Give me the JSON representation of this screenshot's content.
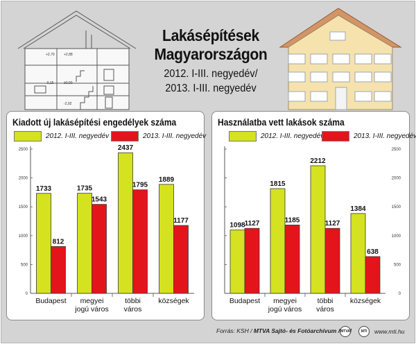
{
  "title": {
    "line1": "Lakásépítések",
    "line2": "Magyarországon",
    "line3": "2012. I-III. negyedév/",
    "line4": "2013.  I-III. negyedév"
  },
  "colors": {
    "series_2012": "#d4e21f",
    "series_2013": "#e3151b",
    "bar_stroke": "#3a3a3a",
    "house_wall": "#f6e2ad",
    "house_roof": "#d49566"
  },
  "house_annotations": [
    "+2,79",
    "+2,88",
    "-0,15",
    "±0,00",
    "-2,92"
  ],
  "chart_data": [
    {
      "type": "bar",
      "title": "Kiadott új lakásépítési engedélyek száma",
      "categories": [
        "Budapest",
        "megyei jogú város",
        "többi város",
        "községek"
      ],
      "category_lines": [
        [
          "Budapest"
        ],
        [
          "megyei",
          "jogú város"
        ],
        [
          "többi",
          "város"
        ],
        [
          "községek"
        ]
      ],
      "series": [
        {
          "name": "2012. I-III. negyedév",
          "values": [
            1733,
            1735,
            2437,
            1889
          ]
        },
        {
          "name": "2013. I-III. negyedév",
          "values": [
            812,
            1543,
            1795,
            1177
          ]
        }
      ],
      "ylim": [
        0,
        2500
      ],
      "yticks": [
        0,
        500,
        1000,
        1500,
        2000,
        2500
      ],
      "legend": "top",
      "grid": false
    },
    {
      "type": "bar",
      "title": "Használatba vett lakások száma",
      "categories": [
        "Budapest",
        "megyei jogú város",
        "többi város",
        "községek"
      ],
      "category_lines": [
        [
          "Budapest"
        ],
        [
          "megyei",
          "jogú város"
        ],
        [
          "többi",
          "város"
        ],
        [
          "községek"
        ]
      ],
      "series": [
        {
          "name": "2012. I-III. negyedév",
          "values": [
            1098,
            1815,
            2212,
            1384
          ]
        },
        {
          "name": "2013. I-III. negyedév",
          "values": [
            1127,
            1185,
            1127,
            638
          ]
        }
      ],
      "ylim": [
        0,
        2500
      ],
      "yticks": [
        0,
        500,
        1000,
        1500,
        2000,
        2500
      ],
      "legend": "top",
      "grid": false
    }
  ],
  "footer": {
    "source_prefix": "Forrás: KSH / ",
    "source_bold": "MTVA Sajtó- és Fotóarchívum / MTI",
    "logo1": "MTVA",
    "logo2": "MTI",
    "url": "www.mti.hu"
  }
}
